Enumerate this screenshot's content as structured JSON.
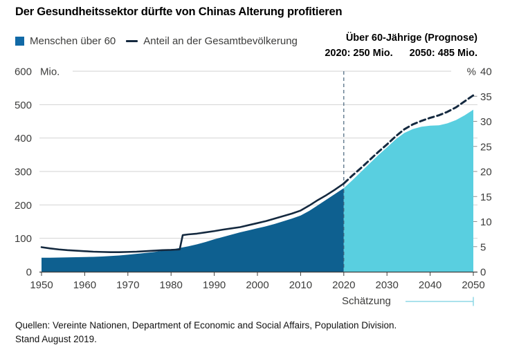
{
  "title": "Der Gesundheitssektor dürfte von Chinas Alterung profitieren",
  "legend": [
    {
      "label": "Menschen über 60",
      "symbol": "square"
    },
    {
      "label": "Anteil an der Gesamtbevölkerung",
      "symbol": "line"
    }
  ],
  "annotation": {
    "line1": "Über 60-Jährige (Prognose)",
    "line2_left": "2020: 250 Mio.",
    "line2_right": "2050: 485 Mio."
  },
  "forecast_label": "Schätzung",
  "source": {
    "line1": "Quellen: Vereinte Nationen, Department of Economic and Social Affairs, Population Division.",
    "line2": "Stand August 2019."
  },
  "axes": {
    "left_unit": "Mio.",
    "right_unit": "%",
    "left_ticks": [
      0,
      100,
      200,
      300,
      400,
      500,
      600
    ],
    "right_ticks": [
      0,
      5,
      10,
      15,
      20,
      25,
      30,
      35,
      40
    ],
    "x_ticks": [
      1950,
      1960,
      1970,
      1980,
      1990,
      2000,
      2010,
      2020,
      2030,
      2040,
      2050
    ],
    "left_range": [
      0,
      600
    ],
    "right_range": [
      0,
      40
    ],
    "x_range": [
      1950,
      2050
    ]
  },
  "colors": {
    "area_historical": "#0E6090",
    "area_forecast": "#59CFE0",
    "line": "#14293F",
    "legend_square": "#1169A6",
    "gridline": "#D2D2D2",
    "axis": "#3C3C3B",
    "right_tick": "#8C8C8C",
    "divider_2020": "#44627A",
    "forecast_bracket": "#8ED8E5",
    "label": "#3C3C3B"
  },
  "chart_data": {
    "type": "area",
    "title": "Der Gesundheitssektor dürfte von Chinas Alterung profitieren",
    "xlabel": "",
    "ylabel_left": "Mio.",
    "ylabel_right": "%",
    "x_range": [
      1950,
      2050
    ],
    "forecast_start": 2020,
    "grid": "horizontal",
    "legend_position": "top-left",
    "series": [
      {
        "name": "Menschen über 60",
        "style": "area",
        "axis": "left",
        "unit": "Mio.",
        "ylim": [
          0,
          600
        ],
        "historical": [
          [
            1950,
            42
          ],
          [
            1952,
            42
          ],
          [
            1954,
            42.5
          ],
          [
            1956,
            43
          ],
          [
            1958,
            43.5
          ],
          [
            1960,
            44
          ],
          [
            1962,
            44.5
          ],
          [
            1964,
            45.5
          ],
          [
            1966,
            47
          ],
          [
            1968,
            48.5
          ],
          [
            1970,
            51
          ],
          [
            1972,
            53.5
          ],
          [
            1974,
            56
          ],
          [
            1976,
            59
          ],
          [
            1978,
            62.5
          ],
          [
            1980,
            66
          ],
          [
            1982,
            71
          ],
          [
            1984,
            76
          ],
          [
            1986,
            82
          ],
          [
            1988,
            89
          ],
          [
            1990,
            97
          ],
          [
            1992,
            104
          ],
          [
            1994,
            111
          ],
          [
            1996,
            118
          ],
          [
            1998,
            124
          ],
          [
            2000,
            130
          ],
          [
            2002,
            136
          ],
          [
            2004,
            143
          ],
          [
            2006,
            151
          ],
          [
            2008,
            159
          ],
          [
            2010,
            168
          ],
          [
            2012,
            182
          ],
          [
            2014,
            199
          ],
          [
            2016,
            216
          ],
          [
            2018,
            233
          ],
          [
            2020,
            250
          ]
        ],
        "forecast": [
          [
            2020,
            250
          ],
          [
            2022,
            274
          ],
          [
            2024,
            299
          ],
          [
            2026,
            324
          ],
          [
            2028,
            349
          ],
          [
            2030,
            372
          ],
          [
            2032,
            396
          ],
          [
            2034,
            415
          ],
          [
            2036,
            427
          ],
          [
            2038,
            434
          ],
          [
            2040,
            437
          ],
          [
            2042,
            438
          ],
          [
            2044,
            444
          ],
          [
            2046,
            454
          ],
          [
            2048,
            468
          ],
          [
            2050,
            485
          ]
        ]
      },
      {
        "name": "Anteil an der Gesamtbevölkerung",
        "style": "line",
        "axis": "right",
        "unit": "%",
        "ylim": [
          0,
          40
        ],
        "historical": [
          [
            1950,
            4.9
          ],
          [
            1952,
            4.65
          ],
          [
            1954,
            4.45
          ],
          [
            1956,
            4.3
          ],
          [
            1958,
            4.2
          ],
          [
            1960,
            4.1
          ],
          [
            1962,
            4.0
          ],
          [
            1964,
            3.95
          ],
          [
            1966,
            3.9
          ],
          [
            1968,
            3.9
          ],
          [
            1970,
            3.95
          ],
          [
            1972,
            4.0
          ],
          [
            1974,
            4.1
          ],
          [
            1976,
            4.2
          ],
          [
            1978,
            4.3
          ],
          [
            1980,
            4.35
          ],
          [
            1982,
            4.45
          ],
          [
            1982.7,
            7.3
          ],
          [
            1984,
            7.45
          ],
          [
            1986,
            7.6
          ],
          [
            1988,
            7.85
          ],
          [
            1990,
            8.1
          ],
          [
            1992,
            8.4
          ],
          [
            1994,
            8.65
          ],
          [
            1996,
            8.9
          ],
          [
            1998,
            9.3
          ],
          [
            2000,
            9.7
          ],
          [
            2002,
            10.1
          ],
          [
            2004,
            10.6
          ],
          [
            2006,
            11.1
          ],
          [
            2008,
            11.6
          ],
          [
            2010,
            12.2
          ],
          [
            2012,
            13.2
          ],
          [
            2014,
            14.3
          ],
          [
            2016,
            15.3
          ],
          [
            2018,
            16.4
          ],
          [
            2020,
            17.6
          ]
        ],
        "forecast": [
          [
            2020,
            17.6
          ],
          [
            2022,
            19.2
          ],
          [
            2024,
            20.7
          ],
          [
            2026,
            22.3
          ],
          [
            2028,
            23.9
          ],
          [
            2030,
            25.4
          ],
          [
            2032,
            27.0
          ],
          [
            2034,
            28.4
          ],
          [
            2036,
            29.4
          ],
          [
            2038,
            30.1
          ],
          [
            2040,
            30.7
          ],
          [
            2042,
            31.2
          ],
          [
            2044,
            31.9
          ],
          [
            2046,
            32.8
          ],
          [
            2048,
            34.0
          ],
          [
            2050,
            35.2
          ]
        ]
      }
    ],
    "key_values": {
      "2020_mio": 250,
      "2050_mio": 485
    }
  }
}
